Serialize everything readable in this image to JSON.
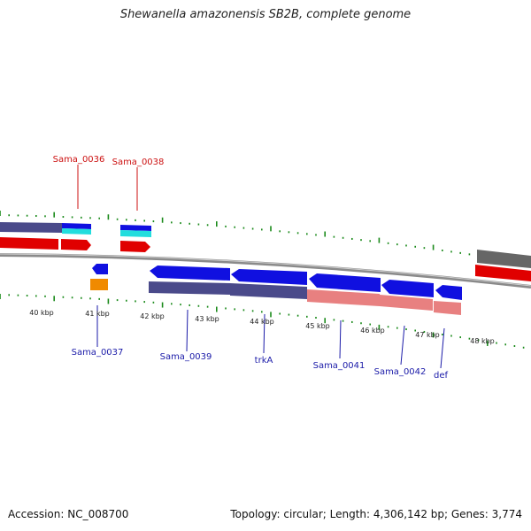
{
  "title": "Shewanella amazonensis SB2B, complete genome",
  "footer": {
    "accession": "Accession: NC_008700",
    "summary": "Topology: circular; Length: 4,306,142 bp; Genes: 3,774"
  },
  "colors": {
    "forward_cds": "#1010e0",
    "reverse_cds": "#e00000",
    "forward_gene_bar": "#4a4a8a",
    "reverse_gene_bar": "#e88080",
    "rna": "#22dddd",
    "misc": "#f08a00",
    "ticks": "#1a8a1a",
    "backbone": "#777777",
    "feature_label_top": "#cc1111",
    "feature_label_bottom": "#1a1aa8"
  },
  "scale_labels": [
    "40 kbp",
    "41 kbp",
    "42 kbp",
    "43 kbp",
    "44 kbp",
    "45 kbp",
    "46 kbp",
    "47 kbp",
    "48 kbp"
  ],
  "top_labels": [
    "Sama_0036",
    "Sama_0038"
  ],
  "bottom_labels": [
    "Sama_0037",
    "Sama_0039",
    "trkA",
    "Sama_0041",
    "Sama_0042",
    "def"
  ]
}
